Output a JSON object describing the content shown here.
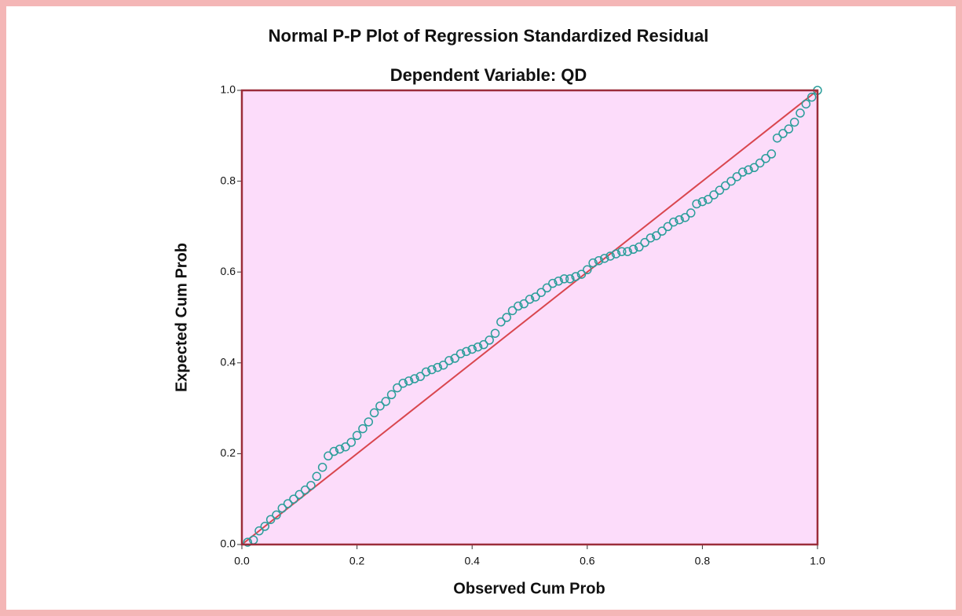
{
  "chart_data": {
    "type": "scatter",
    "title": "Normal P-P Plot of Regression Standardized Residual",
    "subtitle": "Dependent Variable: QD",
    "x_label": "Observed Cum Prob",
    "y_label": "Expected Cum Prob",
    "xlim": [
      0,
      1
    ],
    "ylim": [
      0,
      1
    ],
    "xticks": [
      {
        "value": 0,
        "label": "0.0"
      },
      0.2,
      0.4,
      0.6,
      0.8,
      {
        "value": 1,
        "label": "1.0"
      }
    ],
    "yticks": [
      {
        "value": 0,
        "label": "0.0"
      },
      0.2,
      0.4,
      0.6,
      0.8,
      {
        "value": 1,
        "label": "1.0"
      }
    ],
    "reference_line": true,
    "color": "#2a9d9a",
    "series": [
      {
        "x": [
          0.01,
          0.02,
          0.03,
          0.04,
          0.05,
          0.06,
          0.07,
          0.08,
          0.09,
          0.1,
          0.11,
          0.12,
          0.13,
          0.14,
          0.15,
          0.16,
          0.17,
          0.18,
          0.19,
          0.2,
          0.21,
          0.22,
          0.23,
          0.24,
          0.25,
          0.26,
          0.27,
          0.28,
          0.29,
          0.3,
          0.31,
          0.32,
          0.33,
          0.34,
          0.35,
          0.36,
          0.37,
          0.38,
          0.39,
          0.4,
          0.41,
          0.42,
          0.43,
          0.44,
          0.45,
          0.46,
          0.47,
          0.48,
          0.49,
          0.5,
          0.51,
          0.52,
          0.53,
          0.54,
          0.55,
          0.56,
          0.57,
          0.58,
          0.59,
          0.6,
          0.61,
          0.62,
          0.63,
          0.64,
          0.65,
          0.66,
          0.67,
          0.68,
          0.69,
          0.7,
          0.71,
          0.72,
          0.73,
          0.74,
          0.75,
          0.76,
          0.77,
          0.78,
          0.79,
          0.8,
          0.81,
          0.82,
          0.83,
          0.84,
          0.85,
          0.86,
          0.87,
          0.88,
          0.89,
          0.9,
          0.91,
          0.92,
          0.93,
          0.94,
          0.95,
          0.96,
          0.97,
          0.98,
          0.99,
          1.0
        ],
        "values": [
          0.005,
          0.01,
          0.03,
          0.04,
          0.055,
          0.065,
          0.08,
          0.09,
          0.1,
          0.11,
          0.12,
          0.13,
          0.15,
          0.17,
          0.195,
          0.205,
          0.21,
          0.215,
          0.225,
          0.24,
          0.255,
          0.27,
          0.29,
          0.305,
          0.315,
          0.33,
          0.345,
          0.355,
          0.36,
          0.365,
          0.37,
          0.38,
          0.385,
          0.39,
          0.395,
          0.405,
          0.41,
          0.42,
          0.425,
          0.43,
          0.435,
          0.44,
          0.45,
          0.465,
          0.49,
          0.5,
          0.515,
          0.525,
          0.53,
          0.54,
          0.545,
          0.555,
          0.565,
          0.575,
          0.58,
          0.585,
          0.585,
          0.59,
          0.595,
          0.605,
          0.62,
          0.625,
          0.63,
          0.635,
          0.64,
          0.645,
          0.645,
          0.65,
          0.655,
          0.665,
          0.675,
          0.68,
          0.69,
          0.7,
          0.71,
          0.715,
          0.72,
          0.73,
          0.75,
          0.755,
          0.76,
          0.77,
          0.78,
          0.79,
          0.8,
          0.81,
          0.82,
          0.825,
          0.83,
          0.84,
          0.85,
          0.86,
          0.895,
          0.905,
          0.915,
          0.93,
          0.95,
          0.97,
          0.985,
          1.0
        ]
      }
    ]
  }
}
